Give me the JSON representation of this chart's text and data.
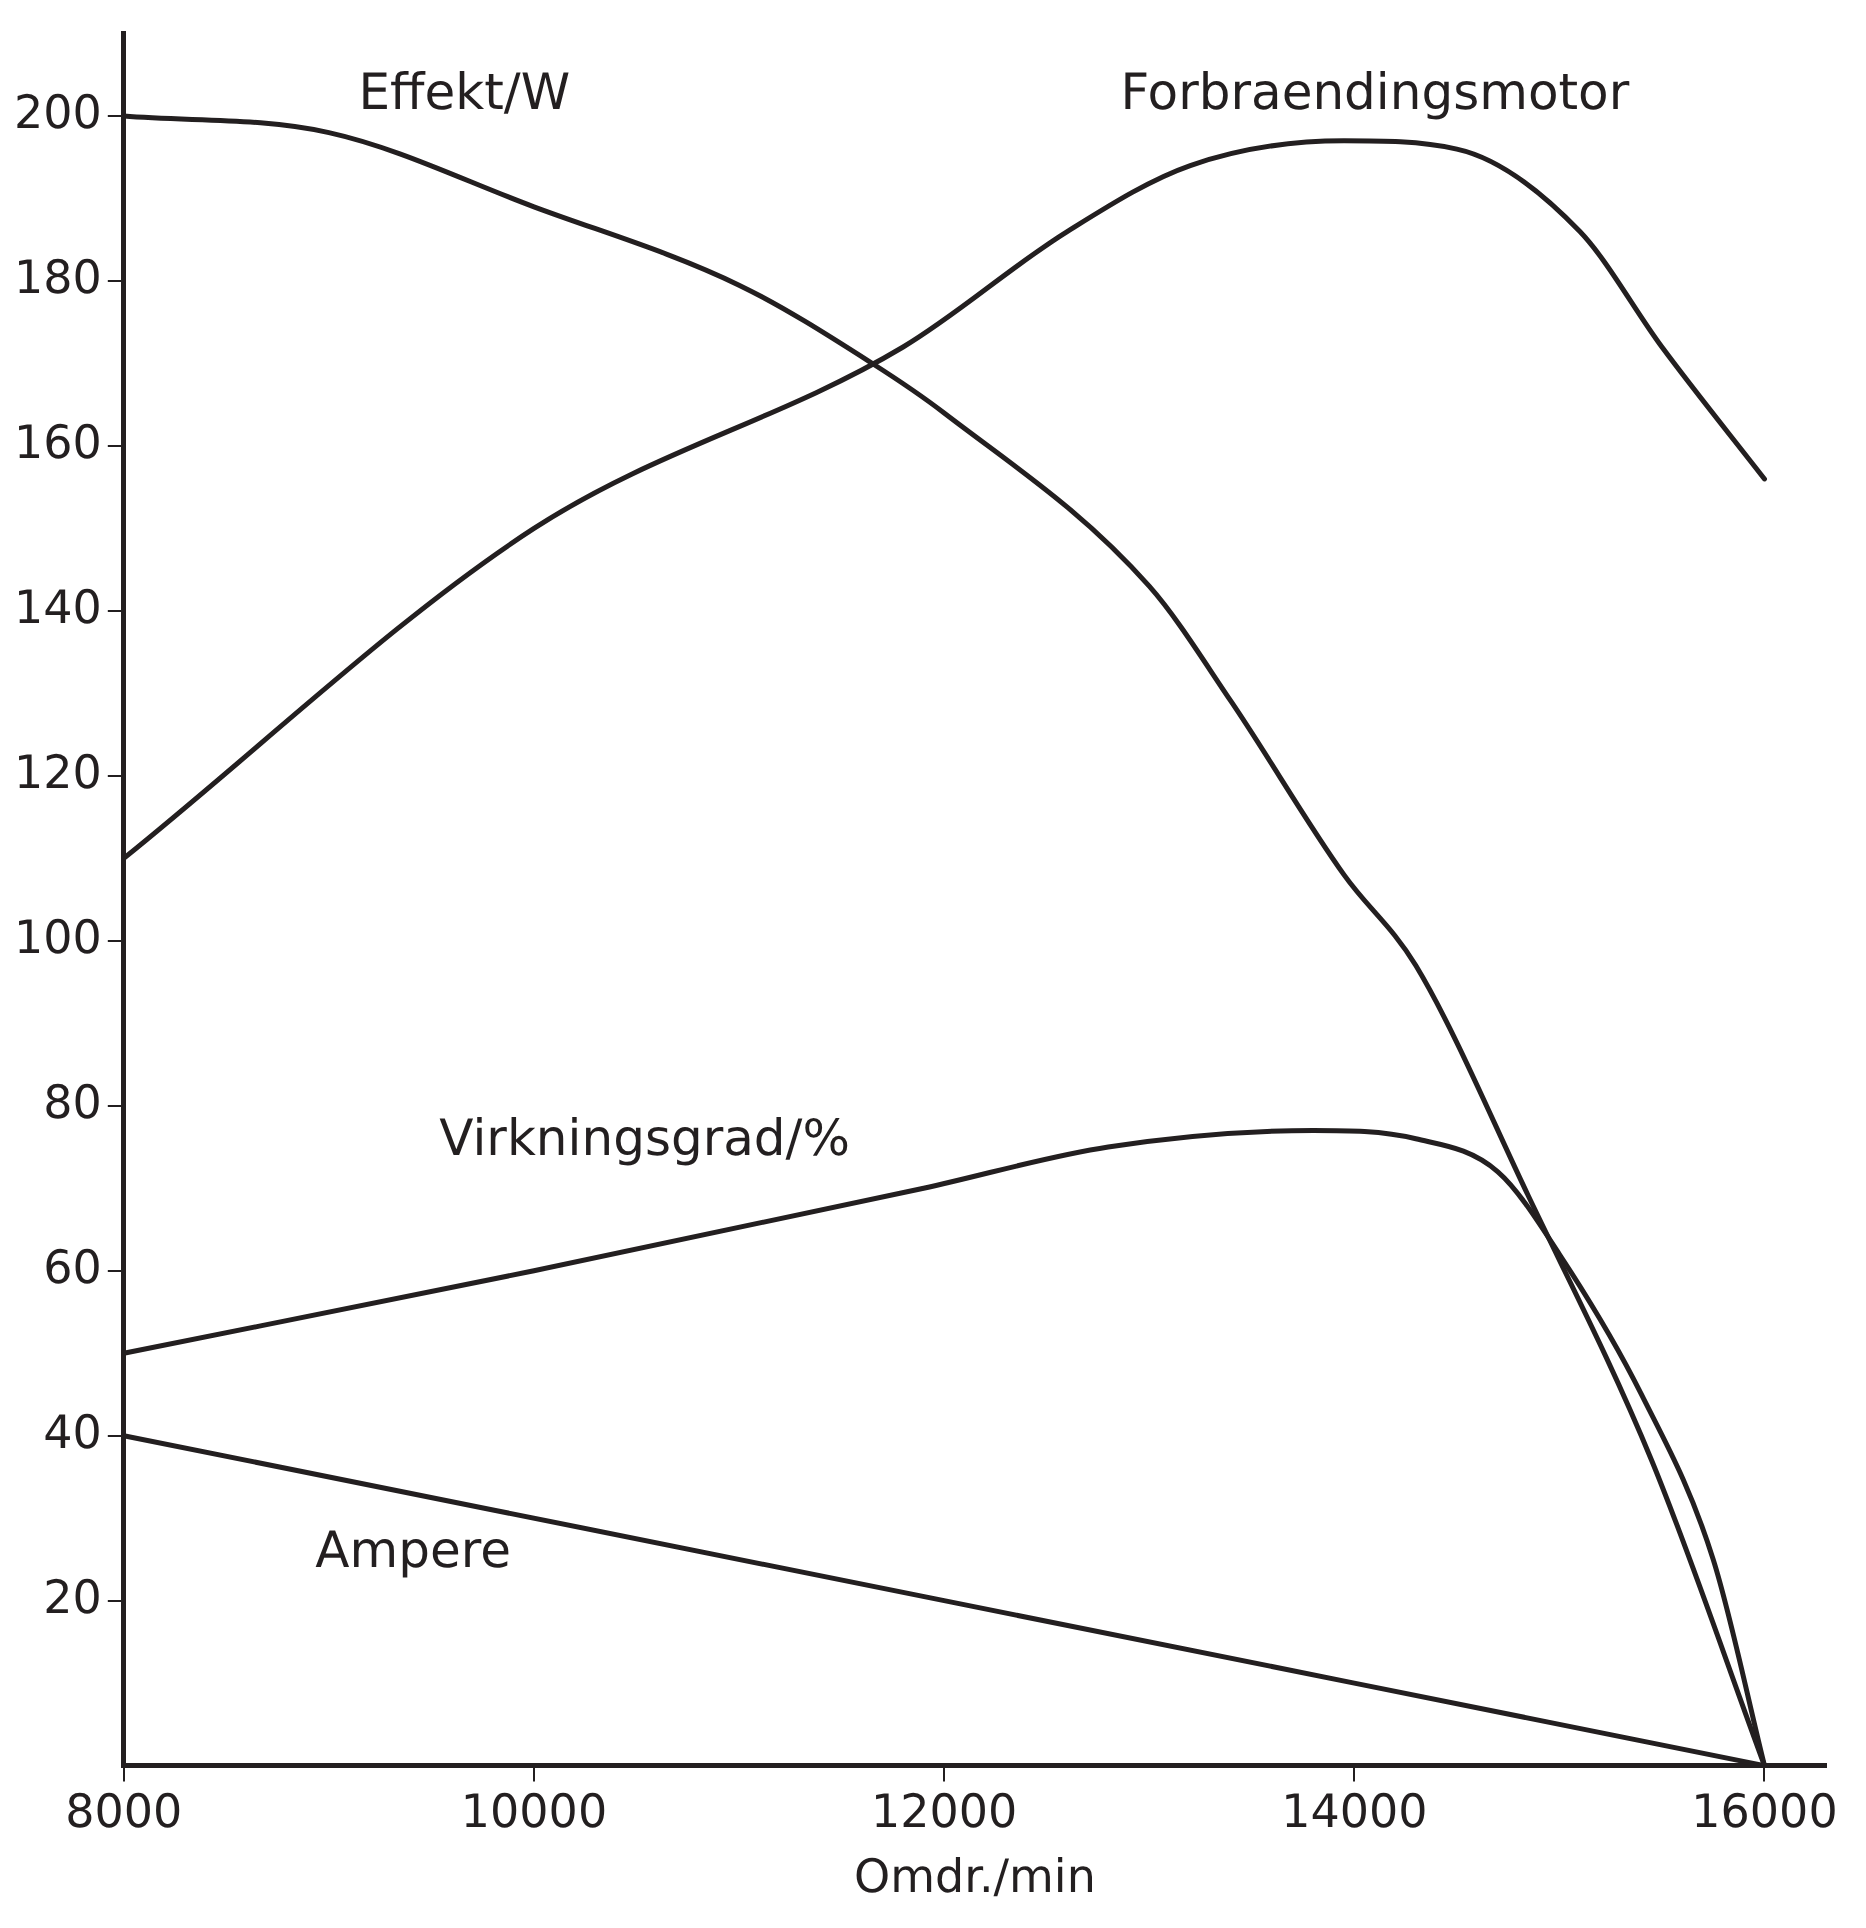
{
  "chart_data": {
    "type": "line",
    "xlabel": "Omdr./min",
    "xlim": [
      8000,
      16300
    ],
    "ylim": [
      0,
      210
    ],
    "xticks": [
      8000,
      10000,
      12000,
      14000,
      16000
    ],
    "yticks": [
      20,
      40,
      60,
      80,
      100,
      120,
      140,
      160,
      180,
      200
    ],
    "marker": "none",
    "line_style": "solid",
    "series": [
      {
        "name": "Effekt/W",
        "color": "#231f20",
        "x": [
          8000,
          9000,
          10000,
          11000,
          11650,
          12000,
          13000,
          13400,
          13950,
          14300,
          14850,
          15450,
          16000
        ],
        "values": [
          200,
          198,
          189,
          179.5,
          170,
          164,
          143,
          129,
          108,
          97,
          69,
          37,
          0
        ]
      },
      {
        "name": "Forbraendingsmotor",
        "color": "#231f20",
        "x": [
          8000,
          10000,
          11800,
          12600,
          13200,
          13950,
          14500,
          15100,
          15500,
          16000
        ],
        "values": [
          110,
          150,
          172,
          186,
          194,
          197,
          196,
          186,
          172,
          156
        ]
      },
      {
        "name": "Virkningsgrad/%",
        "color": "#231f20",
        "x": [
          8000,
          10000,
          11900,
          12800,
          13800,
          14300,
          14700,
          15000,
          15400,
          15750,
          16000
        ],
        "values": [
          50,
          60,
          70,
          75,
          77,
          76,
          72,
          62,
          45,
          25,
          0
        ]
      },
      {
        "name": "Ampere",
        "color": "#231f20",
        "x": [
          8000,
          12000,
          14000,
          16000
        ],
        "values": [
          40,
          20,
          10,
          0
        ]
      }
    ]
  }
}
